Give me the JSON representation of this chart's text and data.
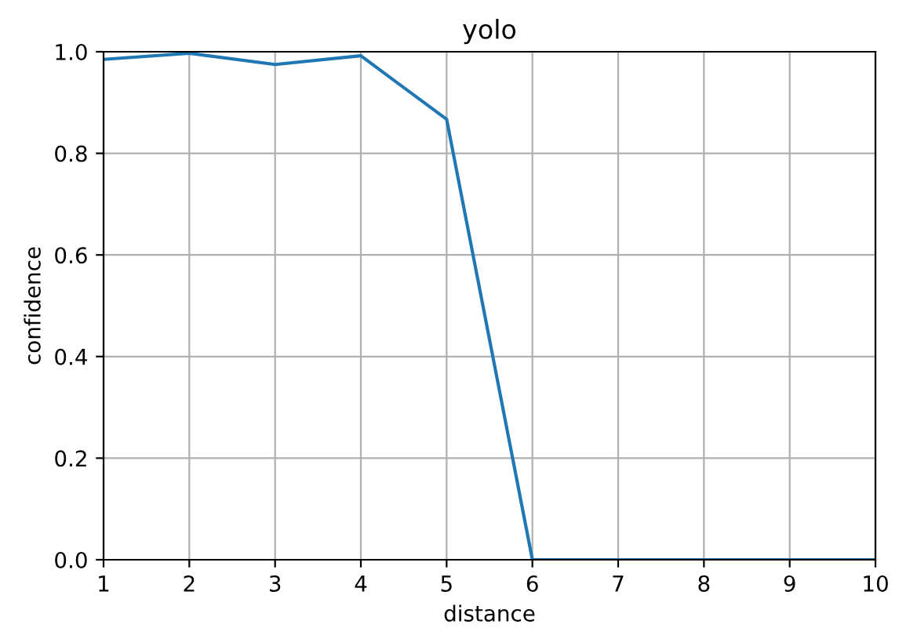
{
  "chart_data": {
    "type": "line",
    "title": "yolo",
    "xlabel": "distance",
    "ylabel": "confidence",
    "x": [
      1,
      2,
      3,
      4,
      5,
      6,
      7,
      8,
      9,
      10
    ],
    "series": [
      {
        "color": "#1f77b4",
        "values": [
          0.985,
          0.997,
          0.975,
          0.992,
          0.867,
          0,
          0,
          0,
          0,
          0
        ]
      }
    ],
    "xlim": [
      1,
      10
    ],
    "ylim": [
      0,
      1
    ],
    "xticks": [
      1,
      2,
      3,
      4,
      5,
      6,
      7,
      8,
      9,
      10
    ],
    "yticks": [
      {
        "value": 0,
        "label": "0.0"
      },
      {
        "value": 0.2,
        "label": "0.2"
      },
      {
        "value": 0.4,
        "label": "0.4"
      },
      {
        "value": 0.6,
        "label": "0.6"
      },
      {
        "value": 0.8,
        "label": "0.8"
      },
      {
        "value": 1,
        "label": "1.0"
      }
    ],
    "grid": true,
    "marker": "none",
    "line_style": "solid"
  }
}
